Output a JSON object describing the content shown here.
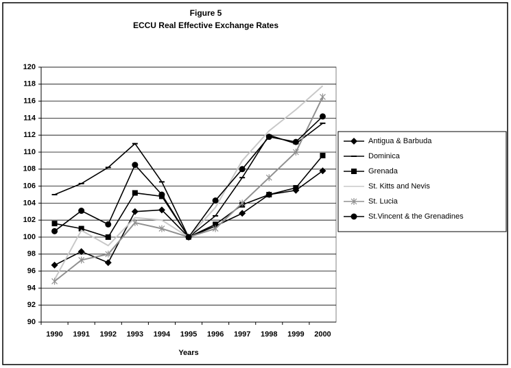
{
  "chart_data": {
    "type": "line",
    "title": "Figure 5",
    "subtitle": "ECCU Real Effective Exchange Rates",
    "x_label": "Years",
    "categories": [
      "1990",
      "1991",
      "1992",
      "1993",
      "1994",
      "1995",
      "1996",
      "1997",
      "1998",
      "1999",
      "2000"
    ],
    "ylim": [
      90,
      120
    ],
    "yticks": [
      90,
      92,
      94,
      96,
      98,
      100,
      102,
      104,
      106,
      108,
      110,
      112,
      114,
      116,
      118,
      120
    ],
    "grid": true,
    "legend": "right",
    "series": [
      {
        "name": "Antigua & Barbuda",
        "color": "#000000",
        "marker": "diamond",
        "values": [
          96.7,
          98.3,
          97.0,
          103.0,
          103.2,
          100.0,
          101.3,
          102.8,
          105.0,
          105.5,
          107.8
        ]
      },
      {
        "name": "Dominica",
        "color": "#000000",
        "marker": "dash",
        "values": [
          105.0,
          106.3,
          108.2,
          111.0,
          106.5,
          100.0,
          102.5,
          107.0,
          112.0,
          111.0,
          113.4
        ]
      },
      {
        "name": "Grenada",
        "color": "#000000",
        "marker": "square",
        "values": [
          101.6,
          101.0,
          100.0,
          105.2,
          104.8,
          100.0,
          101.5,
          103.8,
          105.0,
          105.8,
          109.6
        ]
      },
      {
        "name": "St. Kitts and Nevis",
        "color": "#c8c8c8",
        "marker": "none",
        "values": [
          95.0,
          100.8,
          99.0,
          102.3,
          102.0,
          100.0,
          103.5,
          109.0,
          112.5,
          115.0,
          117.8
        ]
      },
      {
        "name": "St. Lucia",
        "color": "#909090",
        "marker": "cross",
        "values": [
          94.8,
          97.3,
          98.0,
          101.7,
          101.0,
          100.0,
          101.0,
          104.0,
          107.0,
          110.0,
          116.5
        ]
      },
      {
        "name": "St.Vincent & the Grenadines",
        "color": "#000000",
        "marker": "circle",
        "values": [
          100.7,
          103.1,
          101.5,
          108.5,
          105.0,
          100.0,
          104.3,
          108.0,
          111.8,
          111.2,
          114.2
        ]
      }
    ]
  }
}
